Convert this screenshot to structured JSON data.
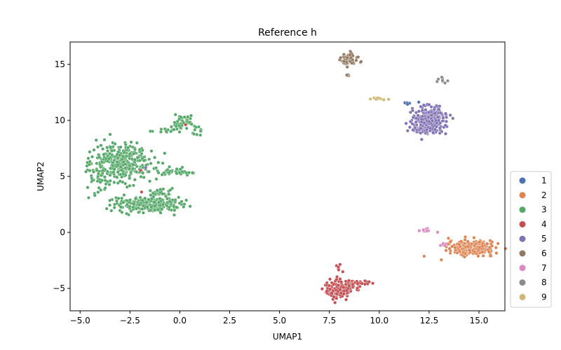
{
  "chart_data": {
    "type": "scatter",
    "title": "Reference h",
    "xlabel": "UMAP1",
    "ylabel": "UMAP2",
    "xlim": [
      -5.5,
      16.3
    ],
    "ylim": [
      -7.0,
      17.0
    ],
    "xticks": [
      -5.0,
      -2.5,
      0.0,
      2.5,
      5.0,
      7.5,
      10.0,
      12.5,
      15.0
    ],
    "xtick_labels": [
      "−5.0",
      "−2.5",
      "0.0",
      "2.5",
      "5.0",
      "7.5",
      "10.0",
      "12.5",
      "15.0"
    ],
    "yticks": [
      -5,
      0,
      5,
      10,
      15
    ],
    "ytick_labels": [
      "−5",
      "0",
      "5",
      "10",
      "15"
    ],
    "grid": false,
    "legend_position": "right, outside bottom",
    "series": [
      {
        "name": "1",
        "color": "#4c72b0",
        "clusters": [
          {
            "cx": 11.4,
            "cy": 11.6,
            "sx": 0.15,
            "sy": 0.08,
            "n": 6
          }
        ]
      },
      {
        "name": "2",
        "color": "#dd8452",
        "clusters": [
          {
            "cx": 14.6,
            "cy": -1.4,
            "sx": 0.55,
            "sy": 0.3,
            "n": 320
          }
        ]
      },
      {
        "name": "3",
        "color": "#55a868",
        "clusters": [
          {
            "cx": -2.8,
            "cy": 6.2,
            "sx": 0.75,
            "sy": 0.9,
            "n": 320
          },
          {
            "cx": -4.2,
            "cy": 5.2,
            "sx": 0.35,
            "sy": 0.9,
            "n": 40
          },
          {
            "cx": -1.6,
            "cy": 2.5,
            "sx": 0.85,
            "sy": 0.35,
            "n": 220
          },
          {
            "cx": -1.0,
            "cy": 3.6,
            "sx": 0.35,
            "sy": 0.2,
            "n": 25
          },
          {
            "cx": -0.2,
            "cy": 5.4,
            "sx": 0.5,
            "sy": 0.15,
            "n": 40
          },
          {
            "cx": 0.1,
            "cy": 9.8,
            "sx": 0.3,
            "sy": 0.3,
            "n": 45
          },
          {
            "cx": -0.6,
            "cy": 9.2,
            "sx": 0.3,
            "sy": 0.15,
            "n": 15
          },
          {
            "cx": 0.8,
            "cy": 9.0,
            "sx": 0.15,
            "sy": 0.3,
            "n": 12
          }
        ]
      },
      {
        "name": "4",
        "color": "#c44e52",
        "clusters": [
          {
            "cx": 8.0,
            "cy": -5.1,
            "sx": 0.35,
            "sy": 0.4,
            "n": 150
          },
          {
            "cx": 8.8,
            "cy": -4.5,
            "sx": 0.3,
            "sy": 0.15,
            "n": 40
          },
          {
            "cx": 8.0,
            "cy": -3.3,
            "sx": 0.1,
            "sy": 0.2,
            "n": 6
          },
          {
            "cx": -1.9,
            "cy": 5.6,
            "sx": 0.05,
            "sy": 0.05,
            "n": 1
          },
          {
            "cx": -1.9,
            "cy": 3.5,
            "sx": 0.05,
            "sy": 0.05,
            "n": 1
          },
          {
            "cx": 0.3,
            "cy": 9.6,
            "sx": 0.05,
            "sy": 0.05,
            "n": 1
          }
        ]
      },
      {
        "name": "5",
        "color": "#8172b3",
        "clusters": [
          {
            "cx": 12.5,
            "cy": 10.1,
            "sx": 0.45,
            "sy": 0.6,
            "n": 260
          },
          {
            "cx": 12.2,
            "cy": 9.2,
            "sx": 0.35,
            "sy": 0.15,
            "n": 40
          },
          {
            "cx": -1.8,
            "cy": 5.7,
            "sx": 0.05,
            "sy": 0.05,
            "n": 1
          }
        ]
      },
      {
        "name": "6",
        "color": "#937860",
        "clusters": [
          {
            "cx": 8.5,
            "cy": 15.5,
            "sx": 0.2,
            "sy": 0.25,
            "n": 70
          },
          {
            "cx": 8.5,
            "cy": 14.0,
            "sx": 0.08,
            "sy": 0.05,
            "n": 4
          }
        ]
      },
      {
        "name": "7",
        "color": "#da8bc3",
        "clusters": [
          {
            "cx": 12.4,
            "cy": 0.2,
            "sx": 0.2,
            "sy": 0.15,
            "n": 10
          },
          {
            "cx": 13.3,
            "cy": -1.1,
            "sx": 0.15,
            "sy": 0.08,
            "n": 6
          }
        ]
      },
      {
        "name": "8",
        "color": "#8c8c8c",
        "clusters": [
          {
            "cx": 13.2,
            "cy": 13.6,
            "sx": 0.2,
            "sy": 0.12,
            "n": 10
          }
        ]
      },
      {
        "name": "9",
        "color": "#ccb974",
        "clusters": [
          {
            "cx": 10.0,
            "cy": 11.9,
            "sx": 0.25,
            "sy": 0.06,
            "n": 12
          }
        ]
      }
    ]
  }
}
